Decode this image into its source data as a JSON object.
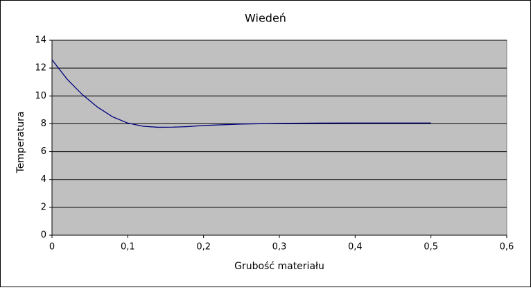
{
  "chart_data": {
    "type": "line",
    "title": "Wiedeń",
    "x_label": "Grubość materiału",
    "y_label": "Temperatura",
    "x": [
      0,
      0.02,
      0.04,
      0.06,
      0.08,
      0.1,
      0.12,
      0.14,
      0.16,
      0.18,
      0.2,
      0.25,
      0.3,
      0.35,
      0.4,
      0.45,
      0.5
    ],
    "series": [
      {
        "color": "#000080",
        "values": [
          12.6,
          11.2,
          10.1,
          9.2,
          8.5,
          8.05,
          7.82,
          7.75,
          7.76,
          7.8,
          7.88,
          7.98,
          8.03,
          8.05,
          8.06,
          8.06,
          8.06
        ]
      }
    ],
    "xlim": [
      0,
      0.6
    ],
    "xticks": [
      0,
      {
        "value": 0.1,
        "label": "0,1"
      },
      {
        "value": 0.2,
        "label": "0,2"
      },
      {
        "value": 0.3,
        "label": "0,3"
      },
      {
        "value": 0.4,
        "label": "0,4"
      },
      {
        "value": 0.5,
        "label": "0,5"
      },
      {
        "value": 0.6,
        "label": "0,6"
      }
    ],
    "ylim": [
      0,
      14
    ],
    "yticks": [
      0,
      2,
      4,
      6,
      8,
      10,
      12,
      14
    ],
    "grid": true,
    "plot_background": "#c0c0c0"
  }
}
